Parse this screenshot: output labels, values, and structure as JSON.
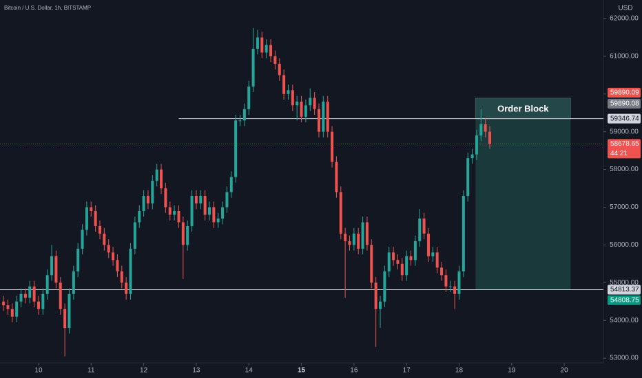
{
  "chart_data": {
    "type": "candlestick",
    "title": "Bitcoin / U.S. Dollar, 1h, BITSTAMP",
    "y_axis_label": "USD",
    "up_color": "#26a69a",
    "down_color": "#ef5350",
    "x": [
      8,
      10,
      12,
      14,
      16,
      18,
      20,
      22,
      24,
      26,
      28,
      30,
      32,
      34,
      36,
      38,
      40,
      42,
      44,
      46,
      48,
      50,
      52,
      54,
      56,
      58,
      60,
      62,
      64,
      66,
      68,
      70,
      72,
      74,
      76,
      78,
      80,
      82,
      84,
      86,
      88,
      90,
      92,
      94,
      96,
      98,
      100,
      102,
      104,
      106,
      108,
      110,
      112,
      114,
      116,
      118,
      120,
      122,
      124,
      126,
      128,
      130,
      132,
      134,
      136,
      138,
      140,
      142,
      144,
      146,
      148,
      150,
      152,
      154,
      156,
      158,
      160,
      162,
      164,
      166,
      168,
      170,
      172,
      174,
      176,
      178,
      180,
      182,
      184,
      186,
      188,
      190,
      192,
      194,
      196,
      198,
      200,
      202,
      204,
      206,
      208,
      210,
      212,
      214,
      216,
      218,
      220,
      222,
      224,
      226,
      228,
      230
    ],
    "open": [
      54500,
      54400,
      54300,
      54100,
      54500,
      54700,
      54600,
      54900,
      54500,
      54300,
      54700,
      55200,
      55700,
      55000,
      54300,
      53800,
      54700,
      55300,
      55900,
      56400,
      57000,
      56900,
      56500,
      56300,
      56000,
      55800,
      55600,
      55300,
      55000,
      54700,
      55900,
      56600,
      56900,
      57300,
      57100,
      57700,
      58000,
      57500,
      57000,
      56800,
      56900,
      56600,
      56000,
      56500,
      57300,
      57100,
      57300,
      56800,
      57000,
      56600,
      56700,
      57000,
      57400,
      57800,
      59300,
      59300,
      59600,
      60200,
      61200,
      61500,
      61100,
      61300,
      61000,
      60800,
      60500,
      60000,
      60100,
      59700,
      59800,
      59400,
      59700,
      59900,
      59600,
      59000,
      59800,
      59000,
      58200,
      57400,
      56300,
      56100,
      56000,
      56300,
      55900,
      56600,
      56000,
      55000,
      54300,
      54500,
      55300,
      55800,
      55600,
      55500,
      55200,
      55700,
      55600,
      56100,
      56700,
      56300,
      55700,
      55800,
      55400,
      55200,
      54900,
      54900,
      54700,
      55300,
      57300,
      58300,
      58400,
      58900,
      59200,
      59000
    ],
    "high": [
      54650,
      54550,
      54450,
      54650,
      54850,
      54850,
      55050,
      55050,
      54650,
      54850,
      55350,
      56000,
      55850,
      55150,
      54450,
      54850,
      55450,
      56050,
      56550,
      57150,
      57150,
      57050,
      56650,
      56450,
      56150,
      55950,
      55750,
      55450,
      55150,
      56050,
      56750,
      57050,
      57450,
      57450,
      57850,
      58150,
      58150,
      57650,
      57150,
      57050,
      57050,
      56750,
      56650,
      57450,
      57450,
      57450,
      57450,
      57150,
      57150,
      56850,
      57150,
      57550,
      57950,
      59450,
      59450,
      59750,
      60350,
      61750,
      61700,
      61650,
      61450,
      61450,
      61150,
      60950,
      60650,
      60250,
      60250,
      59950,
      59950,
      59850,
      60150,
      60050,
      59750,
      59950,
      59950,
      59150,
      58350,
      57550,
      56450,
      56250,
      56450,
      56450,
      56750,
      56750,
      56150,
      55150,
      54650,
      55450,
      55950,
      55950,
      55750,
      55650,
      55850,
      55850,
      56250,
      56950,
      56850,
      56450,
      55950,
      55950,
      55550,
      55350,
      55050,
      55050,
      55450,
      57450,
      58450,
      58550,
      59050,
      59600,
      59350,
      59150
    ],
    "low": [
      54250,
      54150,
      53950,
      53950,
      54350,
      54450,
      54450,
      54350,
      54150,
      54150,
      54550,
      55050,
      54850,
      54150,
      53050,
      53650,
      54550,
      55150,
      55750,
      56250,
      56750,
      56350,
      56150,
      55850,
      55650,
      55450,
      55150,
      54850,
      54550,
      54550,
      55750,
      56450,
      56750,
      56950,
      56950,
      57550,
      57350,
      56850,
      56650,
      56650,
      56450,
      55100,
      55850,
      56350,
      56950,
      56950,
      56650,
      56650,
      56450,
      56450,
      56550,
      56850,
      57250,
      57650,
      59150,
      59150,
      59450,
      60050,
      61050,
      60950,
      60950,
      60850,
      60650,
      60350,
      59850,
      59850,
      59550,
      59300,
      59250,
      59250,
      59550,
      59450,
      58850,
      58850,
      58850,
      58050,
      57250,
      56150,
      54600,
      55850,
      55850,
      55750,
      55750,
      55850,
      54850,
      53300,
      53800,
      54350,
      55150,
      55450,
      55350,
      55050,
      55050,
      55450,
      55450,
      55950,
      56150,
      55550,
      55550,
      55250,
      55050,
      54750,
      54750,
      54300,
      54550,
      55150,
      57150,
      58150,
      58250,
      58750,
      58850,
      58550
    ],
    "close": [
      54400,
      54300,
      54100,
      54500,
      54700,
      54600,
      54900,
      54500,
      54300,
      54700,
      55200,
      55700,
      55000,
      54300,
      53800,
      54700,
      55300,
      55900,
      56400,
      57000,
      56900,
      56500,
      56300,
      56000,
      55800,
      55600,
      55300,
      55000,
      54700,
      55900,
      56600,
      56900,
      57300,
      57100,
      57700,
      58000,
      57500,
      57000,
      56800,
      56900,
      56600,
      56000,
      56500,
      57300,
      57100,
      57300,
      56800,
      57000,
      56600,
      56700,
      57000,
      57400,
      57800,
      59300,
      59300,
      59600,
      60200,
      61200,
      61500,
      61100,
      61300,
      61000,
      60800,
      60500,
      60000,
      60100,
      59700,
      59800,
      59400,
      59700,
      59900,
      59600,
      59000,
      59800,
      59000,
      58200,
      57400,
      56300,
      56100,
      56000,
      56300,
      55900,
      56600,
      56000,
      55000,
      54300,
      54500,
      55300,
      55800,
      55600,
      55500,
      55200,
      55700,
      55600,
      56100,
      56700,
      56300,
      55700,
      55800,
      55400,
      55200,
      54900,
      54900,
      54700,
      55300,
      57300,
      58300,
      58400,
      58900,
      59200,
      59000,
      58678.65
    ],
    "xlim": [
      6.4,
      280
    ],
    "xticks": [
      {
        "value": 24,
        "label": "10"
      },
      {
        "value": 48,
        "label": "11"
      },
      {
        "value": 72,
        "label": "12"
      },
      {
        "value": 96,
        "label": "13"
      },
      {
        "value": 120,
        "label": "14"
      },
      {
        "value": 144,
        "label": "15",
        "bold": true
      },
      {
        "value": 168,
        "label": "16"
      },
      {
        "value": 192,
        "label": "17"
      },
      {
        "value": 216,
        "label": "18"
      },
      {
        "value": 240,
        "label": "19"
      },
      {
        "value": 264,
        "label": "20"
      }
    ],
    "ylim": [
      52874,
      62492
    ],
    "yticks": [
      {
        "value": 53000,
        "label": "53000.00"
      },
      {
        "value": 54000,
        "label": "54000.00"
      },
      {
        "value": 55000,
        "label": "55000.00"
      },
      {
        "value": 56000,
        "label": "56000.00"
      },
      {
        "value": 57000,
        "label": "57000.00"
      },
      {
        "value": 58000,
        "label": "58000.00"
      },
      {
        "value": 59000,
        "label": "59000.00"
      },
      {
        "value": 60000,
        "label": "60000.00"
      },
      {
        "value": 61000,
        "label": "61000.00"
      },
      {
        "value": 62000,
        "label": "62000.00"
      }
    ],
    "grid": false,
    "levels": [
      {
        "value": 59346.74,
        "start_x": 88
      },
      {
        "value": 54813.37,
        "start_x": 6.4
      }
    ],
    "current_price": {
      "value": 58678.65,
      "label": "58678.65",
      "countdown": "44:21",
      "color": "#ef5350"
    },
    "price_tags": [
      {
        "value": 59890.09,
        "label": "59890.09",
        "color": "#ef5350",
        "text_color": "#ffffff"
      },
      {
        "value": 59890.08,
        "label": "59890.08",
        "color": "#787b86",
        "text_color": "#ffffff"
      },
      {
        "value": 59346.74,
        "label": "59346.74",
        "color": "#d1d4dc",
        "text_color": "#131722"
      },
      {
        "value": 54813.37,
        "label": "54813.37",
        "color": "#d1d4dc",
        "text_color": "#131722"
      },
      {
        "value": 54808.75,
        "label": "54808.75",
        "color": "#089981",
        "text_color": "#ffffff"
      }
    ],
    "order_block": {
      "label": "Order Block",
      "x": [
        223.5,
        266.9
      ],
      "y": [
        54813.37,
        59890.08
      ],
      "color": "#1b3f40"
    }
  }
}
